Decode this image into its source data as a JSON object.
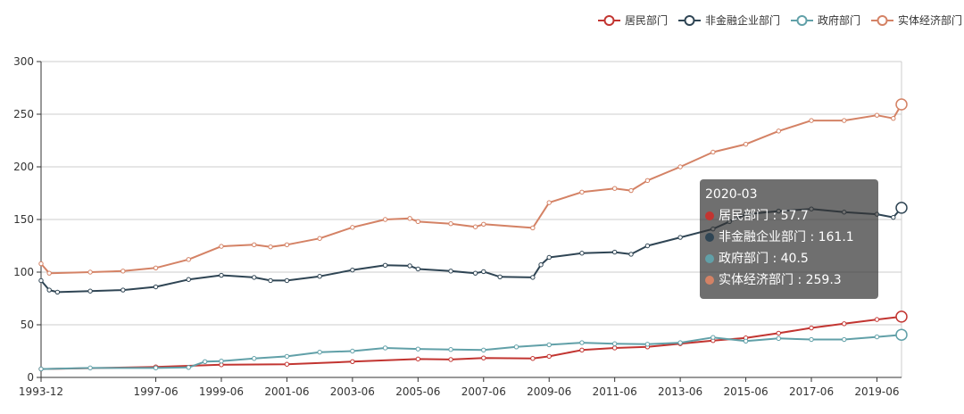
{
  "colors": {
    "axis": "#333333",
    "grid": "#cccccc",
    "tooltip_bg": "rgba(50,50,50,0.7)"
  },
  "chart_data": {
    "type": "line",
    "title": "",
    "xlabel": "",
    "ylabel": "",
    "ylim": [
      0,
      300
    ],
    "yticks": [
      0,
      50,
      100,
      150,
      200,
      250,
      300
    ],
    "xlim": [
      "1993-12",
      "2020-03"
    ],
    "xtick_labels": [
      "1993-12",
      "1997-06",
      "1999-06",
      "2001-06",
      "2003-06",
      "2005-06",
      "2007-06",
      "2009-06",
      "2011-06",
      "2013-06",
      "2015-06",
      "2017-06",
      "2019-06"
    ],
    "grid": true,
    "legend_position": "top-right",
    "series": [
      {
        "name": "居民部门",
        "color": "#c23531",
        "points": [
          [
            "1993-12",
            8
          ],
          [
            "1997-06",
            10
          ],
          [
            "1999-06",
            12
          ],
          [
            "2001-06",
            12.5
          ],
          [
            "2003-06",
            15
          ],
          [
            "2005-06",
            17.5
          ],
          [
            "2006-06",
            17
          ],
          [
            "2007-06",
            18.5
          ],
          [
            "2008-12",
            18
          ],
          [
            "2009-06",
            20
          ],
          [
            "2010-06",
            26
          ],
          [
            "2011-06",
            28
          ],
          [
            "2012-06",
            29
          ],
          [
            "2013-06",
            32
          ],
          [
            "2014-06",
            35
          ],
          [
            "2015-06",
            37.5
          ],
          [
            "2016-06",
            42
          ],
          [
            "2017-06",
            47
          ],
          [
            "2018-06",
            51
          ],
          [
            "2019-06",
            55
          ],
          [
            "2020-03",
            57.7
          ]
        ]
      },
      {
        "name": "非金融企业部门",
        "color": "#2f4554",
        "points": [
          [
            "1993-12",
            92
          ],
          [
            "1994-03",
            83
          ],
          [
            "1994-06",
            81
          ],
          [
            "1995-06",
            82
          ],
          [
            "1996-06",
            83
          ],
          [
            "1997-06",
            86
          ],
          [
            "1998-06",
            93
          ],
          [
            "1999-06",
            97
          ],
          [
            "2000-06",
            95
          ],
          [
            "2000-12",
            92
          ],
          [
            "2001-06",
            92
          ],
          [
            "2002-06",
            96
          ],
          [
            "2003-06",
            102
          ],
          [
            "2004-06",
            106.5
          ],
          [
            "2005-03",
            106
          ],
          [
            "2005-06",
            103
          ],
          [
            "2006-06",
            101
          ],
          [
            "2007-03",
            99
          ],
          [
            "2007-06",
            100.5
          ],
          [
            "2007-12",
            95.5
          ],
          [
            "2008-12",
            95
          ],
          [
            "2009-03",
            107
          ],
          [
            "2009-06",
            114
          ],
          [
            "2010-06",
            118
          ],
          [
            "2011-06",
            119
          ],
          [
            "2011-12",
            117
          ],
          [
            "2012-06",
            125
          ],
          [
            "2013-06",
            133
          ],
          [
            "2014-06",
            141
          ],
          [
            "2014-12",
            148
          ],
          [
            "2015-06",
            155
          ],
          [
            "2016-06",
            158
          ],
          [
            "2017-06",
            160
          ],
          [
            "2018-06",
            157
          ],
          [
            "2019-06",
            155
          ],
          [
            "2019-12",
            152
          ],
          [
            "2020-03",
            161.1
          ]
        ]
      },
      {
        "name": "政府部门",
        "color": "#61a0a8",
        "points": [
          [
            "1993-12",
            8
          ],
          [
            "1995-06",
            9
          ],
          [
            "1997-06",
            9
          ],
          [
            "1998-06",
            9.5
          ],
          [
            "1998-12",
            15
          ],
          [
            "1999-06",
            15.5
          ],
          [
            "2000-06",
            18
          ],
          [
            "2001-06",
            20
          ],
          [
            "2002-06",
            24
          ],
          [
            "2003-06",
            25
          ],
          [
            "2004-06",
            28
          ],
          [
            "2005-06",
            27
          ],
          [
            "2006-06",
            26.5
          ],
          [
            "2007-06",
            26
          ],
          [
            "2008-06",
            29
          ],
          [
            "2009-06",
            31
          ],
          [
            "2010-06",
            33
          ],
          [
            "2011-06",
            32
          ],
          [
            "2012-06",
            31.5
          ],
          [
            "2013-06",
            33
          ],
          [
            "2014-06",
            38
          ],
          [
            "2015-06",
            34.5
          ],
          [
            "2016-06",
            37
          ],
          [
            "2017-06",
            36
          ],
          [
            "2018-06",
            36
          ],
          [
            "2019-06",
            38.5
          ],
          [
            "2020-03",
            40.5
          ]
        ]
      },
      {
        "name": "实体经济部门",
        "color": "#d48265",
        "points": [
          [
            "1993-12",
            108
          ],
          [
            "1994-03",
            99
          ],
          [
            "1995-06",
            100
          ],
          [
            "1996-06",
            101
          ],
          [
            "1997-06",
            104
          ],
          [
            "1998-06",
            112
          ],
          [
            "1999-06",
            124.5
          ],
          [
            "2000-06",
            126
          ],
          [
            "2000-12",
            124
          ],
          [
            "2001-06",
            126
          ],
          [
            "2002-06",
            132
          ],
          [
            "2003-06",
            142.5
          ],
          [
            "2004-06",
            150
          ],
          [
            "2005-03",
            151
          ],
          [
            "2005-06",
            148
          ],
          [
            "2006-06",
            146
          ],
          [
            "2007-03",
            143
          ],
          [
            "2007-06",
            145.5
          ],
          [
            "2008-12",
            142
          ],
          [
            "2009-06",
            166
          ],
          [
            "2010-06",
            176
          ],
          [
            "2011-06",
            179.5
          ],
          [
            "2011-12",
            177.5
          ],
          [
            "2012-06",
            187
          ],
          [
            "2013-06",
            200
          ],
          [
            "2014-06",
            214
          ],
          [
            "2015-06",
            221.5
          ],
          [
            "2016-06",
            234
          ],
          [
            "2017-06",
            244
          ],
          [
            "2018-06",
            244
          ],
          [
            "2019-06",
            249
          ],
          [
            "2019-12",
            246
          ],
          [
            "2020-03",
            259.3
          ]
        ]
      }
    ]
  },
  "tooltip": {
    "title": "2020-03",
    "rows": [
      {
        "label": "居民部门 : 57.7",
        "color": "#c23531"
      },
      {
        "label": "非金融企业部门 : 161.1",
        "color": "#2f4554"
      },
      {
        "label": "政府部门 : 40.5",
        "color": "#61a0a8"
      },
      {
        "label": "实体经济部门 : 259.3",
        "color": "#d48265"
      }
    ]
  }
}
